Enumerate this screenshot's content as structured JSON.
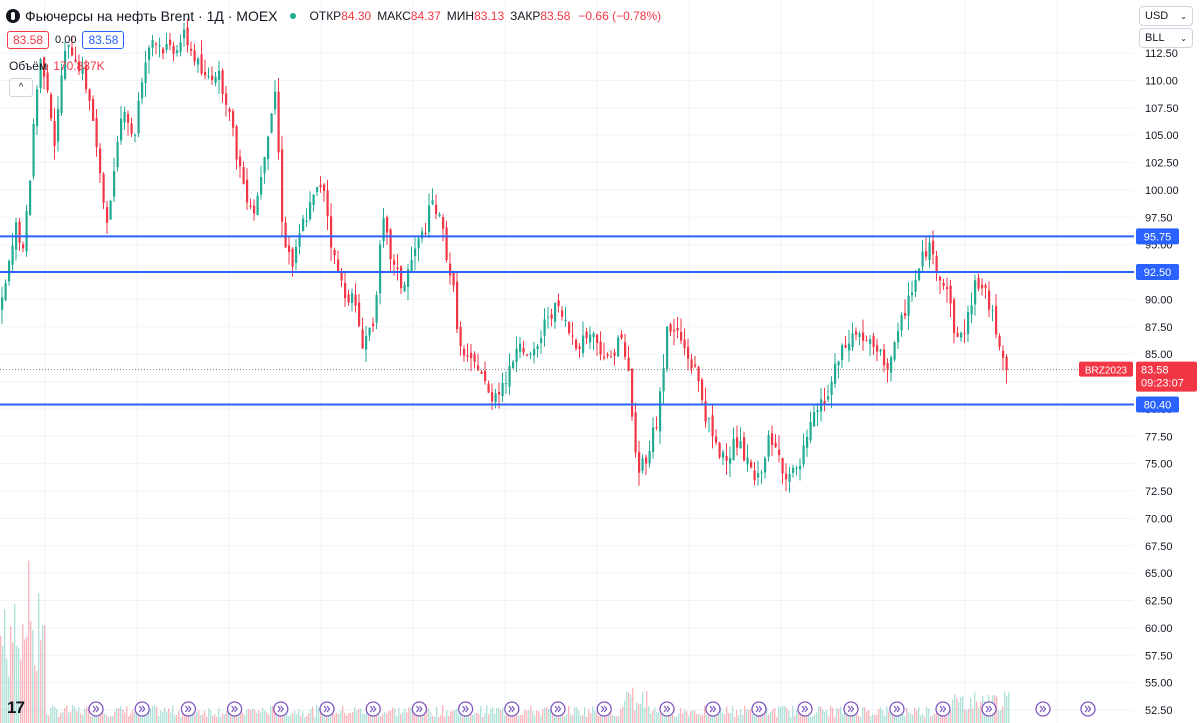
{
  "header": {
    "symbol_title": "Фьючерсы на нефть Brent · 1Д · MOEX",
    "open_label": "ОТКР",
    "open_value": "84.30",
    "high_label": "МАКС",
    "high_value": "84.37",
    "low_label": "МИН",
    "low_value": "83.13",
    "close_label": "ЗАКР",
    "close_value": "83.58",
    "change": "−0.66 (−0.78%)"
  },
  "quote_row": {
    "bid": "83.58",
    "spread": "0.00",
    "ask": "83.58"
  },
  "volume": {
    "label": "Объём",
    "value": "170.837K"
  },
  "selectors": {
    "currency": "USD",
    "unit": "BLL"
  },
  "price_tag": {
    "ticker": "BRZ2023",
    "price": "83.58",
    "countdown": "09:23:07"
  },
  "colors": {
    "up": "#22ab94",
    "down": "#f23645",
    "levels": "#2962ff"
  },
  "chart_data": {
    "type": "candlestick",
    "ylim": [
      52.5,
      112.5
    ],
    "y_ticks": [
      "112.50",
      "110.00",
      "107.50",
      "105.00",
      "102.50",
      "100.00",
      "97.50",
      "95.00",
      "92.50",
      "90.00",
      "87.50",
      "85.00",
      "82.50",
      "80.00",
      "77.50",
      "75.00",
      "72.50",
      "70.00",
      "67.50",
      "65.00",
      "62.50",
      "60.00",
      "57.50",
      "55.00",
      "52.50"
    ],
    "horizontal_levels": [
      {
        "value": 95.75,
        "label": "95.75"
      },
      {
        "value": 92.5,
        "label": "92.50"
      },
      {
        "value": 80.4,
        "label": "80.40"
      }
    ],
    "last_price": 83.58,
    "path": [
      [
        0,
        89
      ],
      [
        8,
        93
      ],
      [
        16,
        97
      ],
      [
        22,
        94
      ],
      [
        28,
        100
      ],
      [
        34,
        108
      ],
      [
        40,
        112
      ],
      [
        46,
        110
      ],
      [
        54,
        104
      ],
      [
        62,
        112
      ],
      [
        70,
        113
      ],
      [
        80,
        111
      ],
      [
        90,
        108
      ],
      [
        100,
        100
      ],
      [
        108,
        97
      ],
      [
        116,
        105
      ],
      [
        124,
        108
      ],
      [
        132,
        104
      ],
      [
        140,
        110
      ],
      [
        150,
        114
      ],
      [
        160,
        113
      ],
      [
        172,
        113
      ],
      [
        184,
        114
      ],
      [
        194,
        112
      ],
      [
        204,
        110
      ],
      [
        214,
        111
      ],
      [
        224,
        109
      ],
      [
        234,
        104
      ],
      [
        244,
        100
      ],
      [
        254,
        98
      ],
      [
        264,
        104
      ],
      [
        274,
        109
      ],
      [
        282,
        96
      ],
      [
        292,
        93
      ],
      [
        302,
        97
      ],
      [
        312,
        99
      ],
      [
        322,
        101
      ],
      [
        332,
        94
      ],
      [
        342,
        91
      ],
      [
        352,
        90
      ],
      [
        362,
        86
      ],
      [
        372,
        88
      ],
      [
        382,
        97
      ],
      [
        392,
        93
      ],
      [
        402,
        91
      ],
      [
        412,
        94
      ],
      [
        422,
        96
      ],
      [
        432,
        99
      ],
      [
        442,
        96
      ],
      [
        452,
        91
      ],
      [
        460,
        85
      ],
      [
        468,
        84
      ],
      [
        478,
        84
      ],
      [
        488,
        81
      ],
      [
        498,
        82
      ],
      [
        508,
        83
      ],
      [
        518,
        87
      ],
      [
        528,
        84
      ],
      [
        538,
        86
      ],
      [
        548,
        89
      ],
      [
        558,
        89
      ],
      [
        568,
        87
      ],
      [
        578,
        86
      ],
      [
        588,
        87
      ],
      [
        598,
        86
      ],
      [
        608,
        84
      ],
      [
        618,
        87
      ],
      [
        628,
        83
      ],
      [
        636,
        74
      ],
      [
        646,
        76
      ],
      [
        656,
        79
      ],
      [
        666,
        87
      ],
      [
        676,
        87
      ],
      [
        686,
        85
      ],
      [
        696,
        83
      ],
      [
        706,
        79
      ],
      [
        716,
        76
      ],
      [
        726,
        76
      ],
      [
        736,
        77
      ],
      [
        746,
        75
      ],
      [
        756,
        73
      ],
      [
        766,
        77
      ],
      [
        776,
        76
      ],
      [
        786,
        74
      ],
      [
        796,
        74
      ],
      [
        806,
        77
      ],
      [
        816,
        80
      ],
      [
        826,
        81
      ],
      [
        836,
        84
      ],
      [
        846,
        86
      ],
      [
        856,
        87
      ],
      [
        866,
        86
      ],
      [
        876,
        85
      ],
      [
        886,
        84
      ],
      [
        896,
        86
      ],
      [
        906,
        90
      ],
      [
        916,
        92
      ],
      [
        926,
        95
      ],
      [
        936,
        93
      ],
      [
        946,
        91
      ],
      [
        956,
        86
      ],
      [
        966,
        88
      ],
      [
        976,
        92
      ],
      [
        986,
        90
      ],
      [
        996,
        87
      ],
      [
        1006,
        84
      ],
      [
        1010,
        83.58
      ]
    ],
    "volume_visible_range": [
      0,
      1010
    ]
  }
}
